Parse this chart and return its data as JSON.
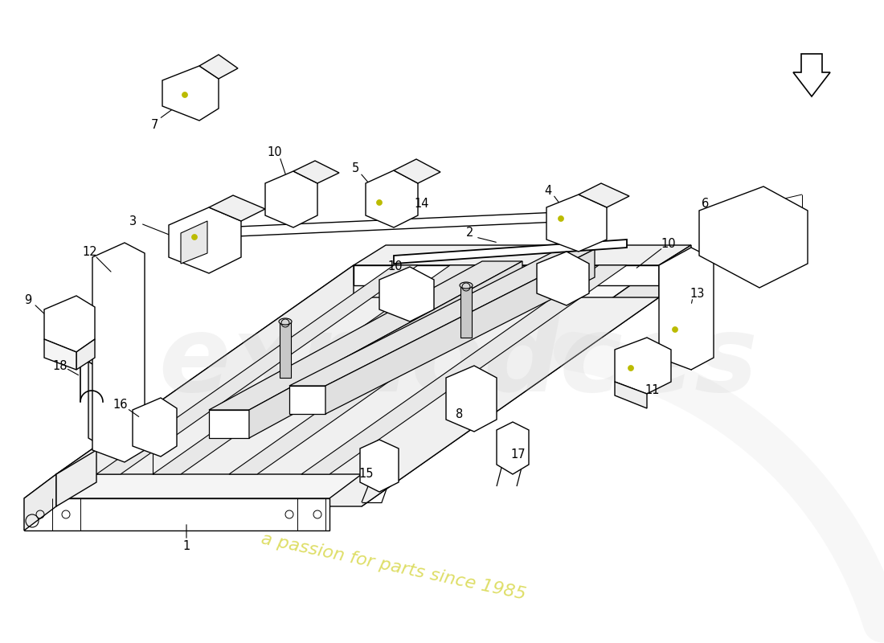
{
  "background_color": "#ffffff",
  "line_color": "#000000",
  "label_color": "#000000",
  "watermark_color": "#c8c800",
  "fig_width": 11.0,
  "fig_height": 8.0,
  "label_fontsize": 10.5
}
